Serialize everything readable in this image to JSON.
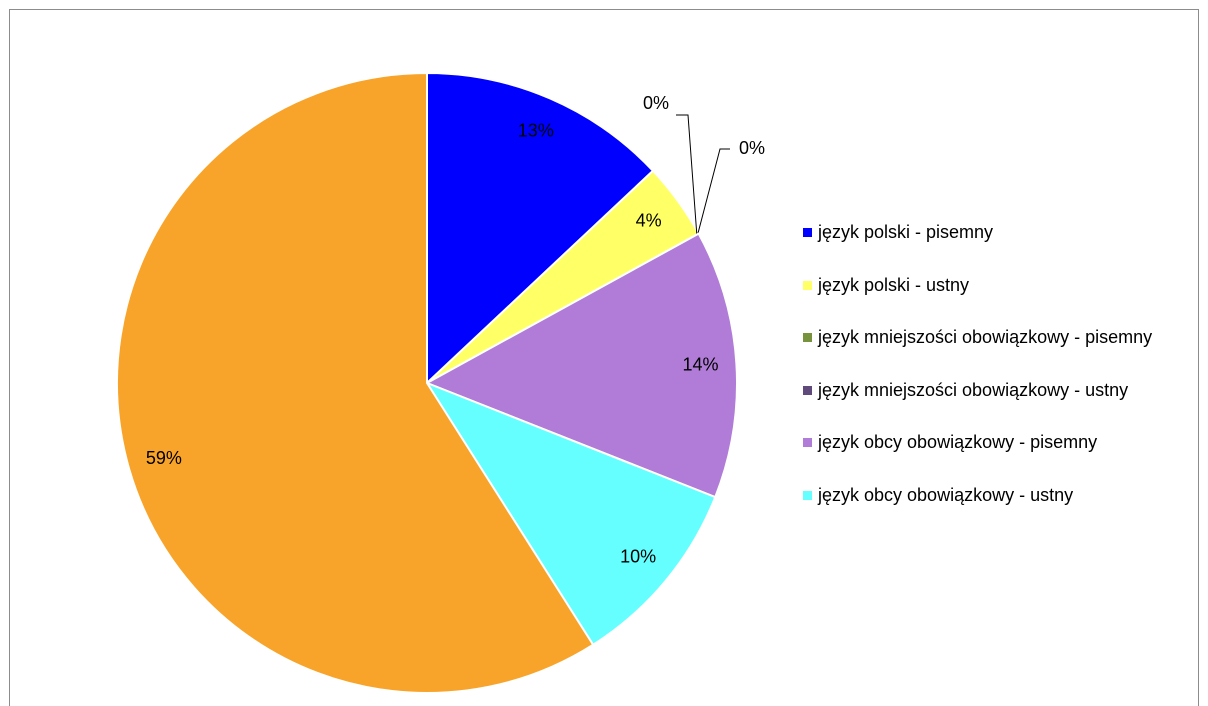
{
  "chart_data": {
    "type": "pie",
    "categories": [
      "język polski - pisemny",
      "język polski - ustny",
      "język mniejszości obowiązkowy - pisemny",
      "język mniejszości obowiązkowy - ustny",
      "język obcy obowiązkowy - pisemny",
      "język obcy obowiązkowy - ustny",
      null
    ],
    "values": [
      13,
      4,
      0,
      0,
      14,
      10,
      59
    ],
    "value_labels": [
      "13%",
      "4%",
      "0%",
      "0%",
      "14%",
      "10%",
      "59%"
    ],
    "colors": [
      "#0000ff",
      "#ffff66",
      "#77933c",
      "#604a7b",
      "#b07cd8",
      "#66ffff",
      "#f8a42a"
    ],
    "legend": "right"
  }
}
